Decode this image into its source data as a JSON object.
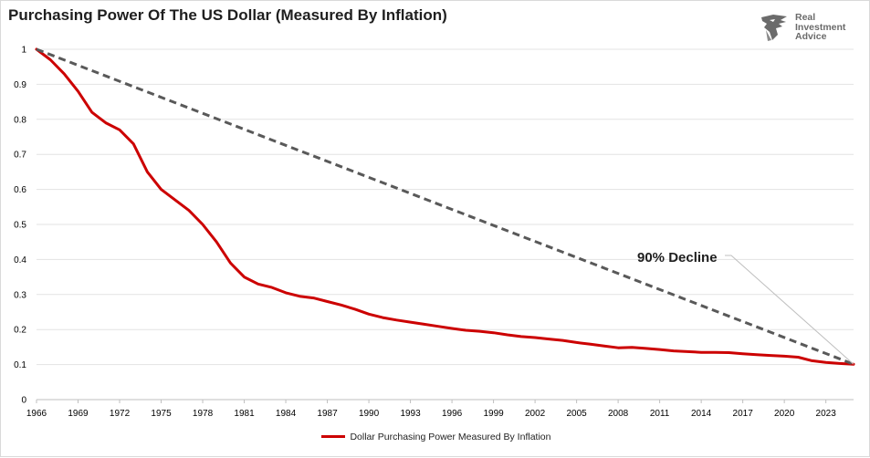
{
  "title": "Purchasing Power Of The US Dollar (Measured By Inflation)",
  "brand": {
    "lines": [
      "Real",
      "Investment",
      "Advice"
    ],
    "icon": "eagle-logo-icon",
    "color": "#6b6b6b"
  },
  "chart_data": {
    "type": "line",
    "title": "Purchasing Power Of The US Dollar (Measured By Inflation)",
    "xlabel": "",
    "ylabel": "",
    "xlim": [
      1966,
      2025
    ],
    "ylim": [
      0,
      1
    ],
    "x_ticks": [
      "1966",
      "1969",
      "1972",
      "1975",
      "1978",
      "1981",
      "1984",
      "1987",
      "1990",
      "1993",
      "1996",
      "1999",
      "2002",
      "2005",
      "2008",
      "2011",
      "2014",
      "2017",
      "2020",
      "2023"
    ],
    "y_ticks": [
      "0",
      "0.1",
      "0.2",
      "0.3",
      "0.4",
      "0.5",
      "0.6",
      "0.7",
      "0.8",
      "0.9",
      "1"
    ],
    "grid": "horizontal",
    "legend_position": "bottom",
    "series": [
      {
        "name": "Dollar Purchasing Power Measured By Inflation",
        "color": "#cc0000",
        "style": "solid",
        "x": [
          1966,
          1967,
          1968,
          1969,
          1970,
          1971,
          1972,
          1973,
          1974,
          1975,
          1976,
          1977,
          1978,
          1979,
          1980,
          1981,
          1982,
          1983,
          1984,
          1985,
          1986,
          1987,
          1988,
          1989,
          1990,
          1991,
          1992,
          1993,
          1994,
          1995,
          1996,
          1997,
          1998,
          1999,
          2000,
          2001,
          2002,
          2003,
          2004,
          2005,
          2006,
          2007,
          2008,
          2009,
          2010,
          2011,
          2012,
          2013,
          2014,
          2015,
          2016,
          2017,
          2018,
          2019,
          2020,
          2021,
          2022,
          2023,
          2024,
          2025
        ],
        "y": [
          1.0,
          0.97,
          0.93,
          0.88,
          0.82,
          0.79,
          0.77,
          0.73,
          0.65,
          0.6,
          0.57,
          0.54,
          0.5,
          0.45,
          0.39,
          0.35,
          0.33,
          0.32,
          0.305,
          0.295,
          0.29,
          0.28,
          0.27,
          0.258,
          0.244,
          0.234,
          0.227,
          0.221,
          0.215,
          0.209,
          0.203,
          0.198,
          0.195,
          0.191,
          0.185,
          0.18,
          0.177,
          0.173,
          0.169,
          0.163,
          0.158,
          0.153,
          0.148,
          0.149,
          0.146,
          0.143,
          0.139,
          0.137,
          0.135,
          0.135,
          0.134,
          0.131,
          0.128,
          0.126,
          0.124,
          0.121,
          0.111,
          0.106,
          0.103,
          0.101
        ]
      },
      {
        "name": "",
        "color": "#595959",
        "style": "dashed",
        "x": [
          1966,
          2025
        ],
        "y": [
          1.0,
          0.101
        ]
      }
    ],
    "annotations": [
      {
        "text": "90% Decline",
        "points_to": {
          "x": 2025,
          "y": 0.101
        }
      }
    ],
    "legend": [
      "Dollar Purchasing Power Measured By Inflation"
    ]
  }
}
